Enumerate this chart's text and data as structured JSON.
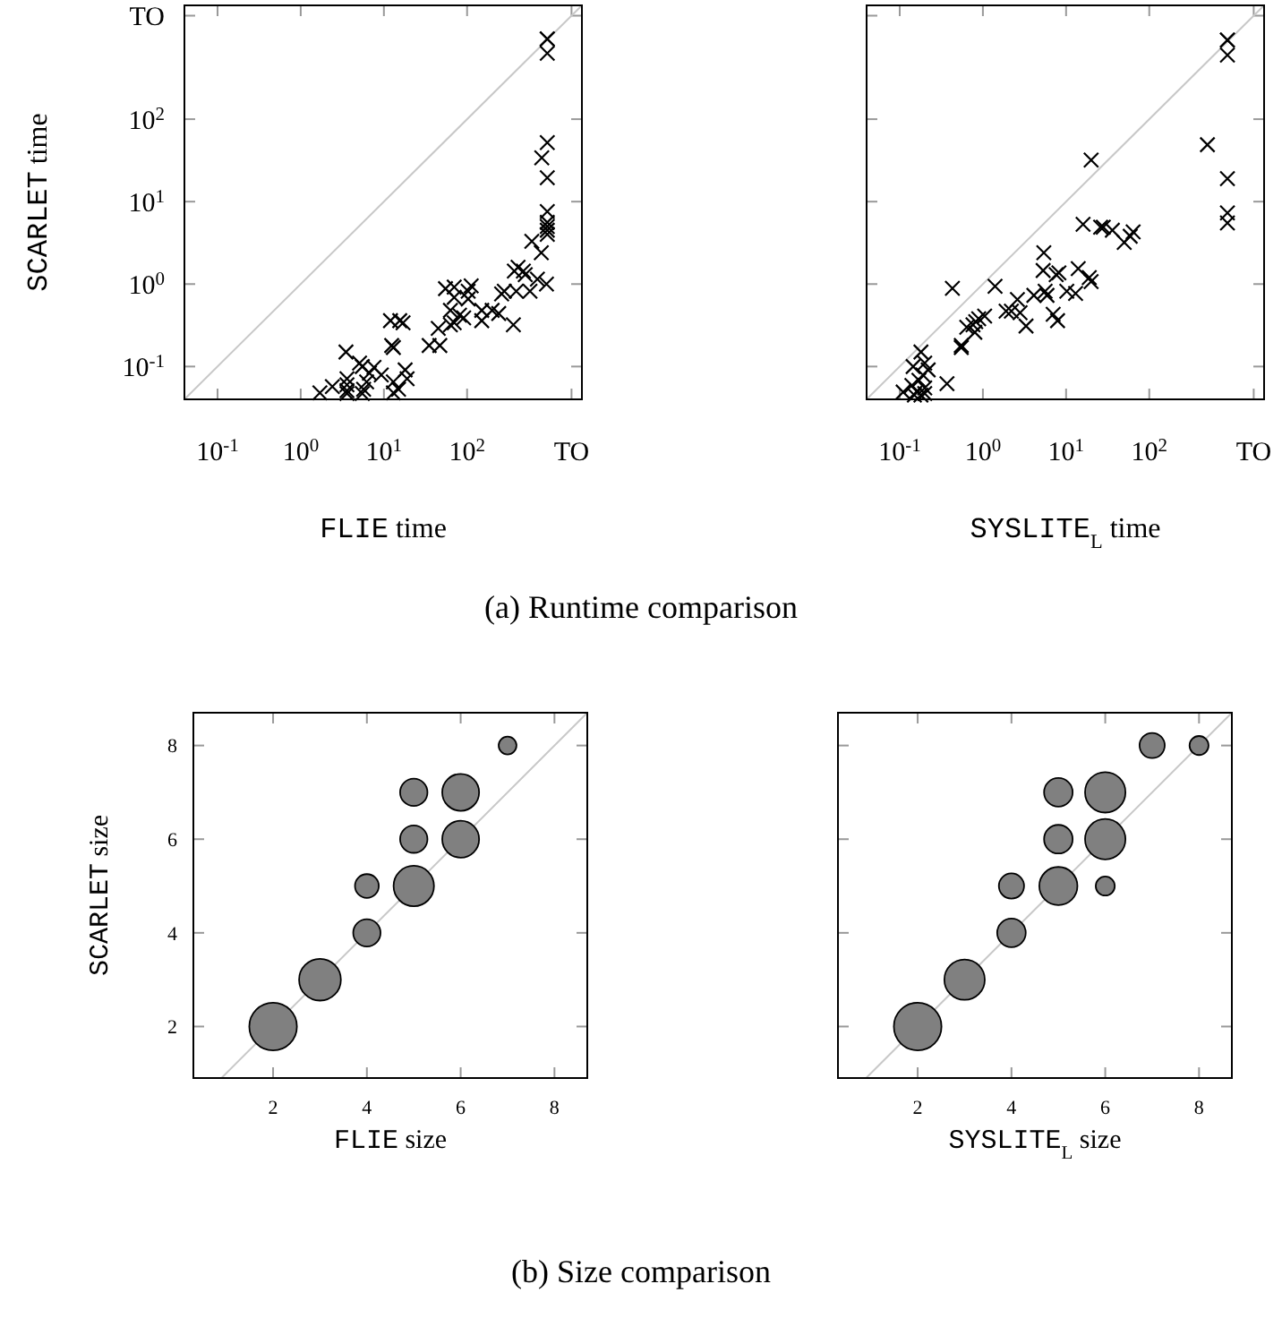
{
  "chart_data": [
    {
      "type": "scatter",
      "log": "xy",
      "xlim": [
        0.04,
        2400
      ],
      "ylim": [
        0.04,
        2400
      ],
      "xticks": [
        {
          "value": 0.1,
          "label": "10$^{-1}$"
        },
        {
          "value": 1,
          "label": "10$^{0}$"
        },
        {
          "value": 10,
          "label": "10$^{1}$"
        },
        {
          "value": 100,
          "label": "10$^{2}$"
        },
        {
          "value": 1800,
          "label": "TO"
        }
      ],
      "yticks": [
        {
          "value": 0.1,
          "label": "10$^{-1}$"
        },
        {
          "value": 1,
          "label": "10$^{0}$"
        },
        {
          "value": 10,
          "label": "10$^{1}$"
        },
        {
          "value": 100,
          "label": "10$^{2}$"
        },
        {
          "value": 1800,
          "label": "TO"
        }
      ],
      "xlabel": "FLIE time",
      "ylabel": "SCARLET time",
      "marker": "cross",
      "annotations": [
        "(a) Runtime comparison"
      ],
      "series": [
        {
          "type": "line",
          "marker": "none",
          "color": "#c8c8c8",
          "x": [
            0.04,
            2400
          ],
          "values": [
            0.04,
            2400
          ]
        },
        {
          "color": "#000000",
          "x": [
            920,
            920,
            920,
            920,
            790,
            920,
            920,
            920,
            920,
            920,
            920,
            600,
            780,
            900,
            700,
            475,
            410,
            370,
            500,
            570,
            390,
            280,
            260,
            360,
            240,
            200,
            150,
            150,
            112,
            103,
            103,
            70,
            55,
            70,
            63,
            81,
            91,
            70,
            63,
            45,
            35,
            47,
            12,
            15.5,
            17,
            12.4,
            13,
            3.5,
            5.1,
            5.5,
            7.6,
            6.7,
            9.3,
            18,
            19,
            13,
            15,
            13,
            6.2,
            5.7,
            3.6,
            3.6,
            3.6,
            3.6,
            2.4,
            1.7,
            5.5
          ],
          "values": [
            940,
            940,
            630,
            52,
            34,
            19.5,
            7.6,
            5.6,
            5,
            4.5,
            4,
            3.3,
            2.4,
            1,
            1.15,
            1.44,
            1.6,
            1.44,
            1.3,
            0.82,
            0.82,
            0.82,
            0.76,
            0.32,
            0.44,
            0.48,
            0.48,
            0.36,
            0.95,
            0.82,
            0.66,
            0.92,
            0.88,
            0.69,
            0.48,
            0.42,
            0.39,
            0.34,
            0.32,
            0.29,
            0.18,
            0.18,
            0.36,
            0.36,
            0.34,
            0.18,
            0.17,
            0.15,
            0.11,
            0.1,
            0.098,
            0.083,
            0.079,
            0.091,
            0.071,
            0.065,
            0.053,
            0.048,
            0.065,
            0.053,
            0.071,
            0.06,
            0.051,
            0.047,
            0.057,
            0.048,
            0.047
          ]
        }
      ]
    },
    {
      "type": "scatter",
      "log": "xy",
      "xlim": [
        0.04,
        2400
      ],
      "ylim": [
        0.04,
        2400
      ],
      "xticks": [
        {
          "value": 0.1,
          "label": "10$^{-1}$"
        },
        {
          "value": 1,
          "label": "10$^{0}$"
        },
        {
          "value": 10,
          "label": "10$^{1}$"
        },
        {
          "value": 100,
          "label": "10$^{2}$"
        },
        {
          "value": 1800,
          "label": "TO"
        }
      ],
      "yticks": [
        {
          "value": 0.1,
          "label": null
        },
        {
          "value": 1,
          "label": null
        },
        {
          "value": 10,
          "label": null
        },
        {
          "value": 100,
          "label": null
        },
        {
          "value": 1800,
          "label": null
        }
      ],
      "tick_labels": "x",
      "xlabel": "SYSLITE$_{L}$ time",
      "marker": "cross",
      "series": [
        {
          "type": "line",
          "marker": "none",
          "color": "#c8c8c8",
          "x": [
            0.04,
            2400
          ],
          "values": [
            0.04,
            2400
          ]
        },
        {
          "color": "#000000",
          "x": [
            870,
            870,
            870,
            500,
            870,
            870,
            870,
            20,
            16,
            26,
            28,
            36,
            64,
            59,
            50,
            5.4,
            5.3,
            8.2,
            7.6,
            14,
            20,
            19,
            5.6,
            5.9,
            4.1,
            2.6,
            3.3,
            2.8,
            2.2,
            1.9,
            1.4,
            0.43,
            10.2,
            13,
            7,
            7.9,
            1.05,
            0.89,
            0.82,
            0.76,
            0.64,
            0.8,
            0.55,
            0.55,
            0.37,
            0.18,
            0.145,
            0.2,
            0.22,
            0.19,
            0.17,
            0.14,
            0.2,
            0.16,
            0.11,
            0.2,
            0.18,
            0.15
          ],
          "values": [
            910,
            910,
            600,
            49,
            19,
            7.3,
            5.5,
            32,
            5.3,
            4.9,
            4.9,
            4.5,
            4.3,
            3.8,
            3.2,
            2.4,
            1.46,
            1.37,
            1.3,
            1.54,
            1.07,
            1.2,
            0.82,
            0.73,
            0.73,
            0.65,
            0.31,
            0.45,
            0.47,
            0.47,
            0.94,
            0.89,
            0.82,
            0.77,
            0.43,
            0.36,
            0.41,
            0.38,
            0.35,
            0.32,
            0.3,
            0.26,
            0.18,
            0.17,
            0.062,
            0.15,
            0.1,
            0.11,
            0.091,
            0.079,
            0.068,
            0.059,
            0.055,
            0.05,
            0.049,
            0.047,
            0.045,
            0.045
          ]
        }
      ]
    },
    {
      "type": "bubble",
      "xlim": [
        0.3,
        8.7
      ],
      "ylim": [
        0.9,
        8.7
      ],
      "xticks": [
        2,
        4,
        6,
        8
      ],
      "yticks": [
        2,
        4,
        6,
        8
      ],
      "xlabel": "FLIE size",
      "ylabel": "SCARLET size",
      "marker": "circle",
      "annotations": [
        "(b) Size comparison"
      ],
      "series": [
        {
          "type": "line",
          "marker": "none",
          "color": "#c8c8c8",
          "x": [
            0.9,
            8.7
          ],
          "values": [
            0.9,
            8.7
          ]
        },
        {
          "color": "#808080",
          "x": [
            2,
            3,
            4,
            4,
            5,
            5,
            5,
            6,
            6,
            7
          ],
          "values": [
            2,
            3,
            4,
            5,
            5,
            6,
            7,
            6,
            7,
            8
          ],
          "sizes": [
            1,
            0.77,
            0.33,
            0.25,
            0.72,
            0.33,
            0.33,
            0.6,
            0.6,
            0.14
          ]
        }
      ]
    },
    {
      "type": "bubble",
      "xlim": [
        0.3,
        8.7
      ],
      "ylim": [
        0.9,
        8.7
      ],
      "xticks": [
        2,
        4,
        6,
        8
      ],
      "yticks": [
        2,
        4,
        6,
        8
      ],
      "tick_labels": "x",
      "xlabel": "SYSLITE$_{L}$ size",
      "marker": "circle",
      "series": [
        {
          "type": "line",
          "marker": "none",
          "color": "#c8c8c8",
          "x": [
            0.9,
            8.7
          ],
          "values": [
            0.9,
            8.7
          ]
        },
        {
          "color": "#808080",
          "x": [
            2,
            3,
            4,
            4,
            5,
            5,
            5,
            6,
            6,
            6,
            7,
            8
          ],
          "values": [
            2,
            3,
            4,
            5,
            5,
            6,
            7,
            5,
            6,
            7,
            8,
            8
          ],
          "sizes": [
            1,
            0.72,
            0.36,
            0.28,
            0.64,
            0.36,
            0.36,
            0.16,
            0.72,
            0.72,
            0.28,
            0.16
          ]
        }
      ]
    }
  ]
}
